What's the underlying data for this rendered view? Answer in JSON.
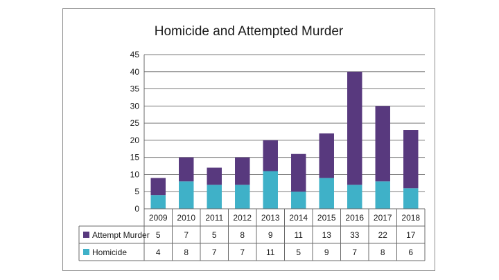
{
  "chart_data": {
    "type": "bar",
    "stacked": true,
    "title": "Homicide and Attempted Murder",
    "categories": [
      "2009",
      "2010",
      "2011",
      "2012",
      "2013",
      "2014",
      "2015",
      "2016",
      "2017",
      "2018"
    ],
    "series": [
      {
        "name": "Homicide",
        "values": [
          4,
          8,
          7,
          7,
          11,
          5,
          9,
          7,
          8,
          6
        ],
        "color": "#3fb1c8"
      },
      {
        "name": "Attempt Murder",
        "values": [
          5,
          7,
          5,
          8,
          9,
          11,
          13,
          33,
          22,
          17
        ],
        "color": "#58397e"
      }
    ],
    "ylim": [
      0,
      45
    ],
    "yticks": [
      0,
      5,
      10,
      15,
      20,
      25,
      30,
      35,
      40,
      45
    ],
    "grid": true,
    "legend": "data-table",
    "table_row_order": [
      "Attempt Murder",
      "Homicide"
    ]
  }
}
